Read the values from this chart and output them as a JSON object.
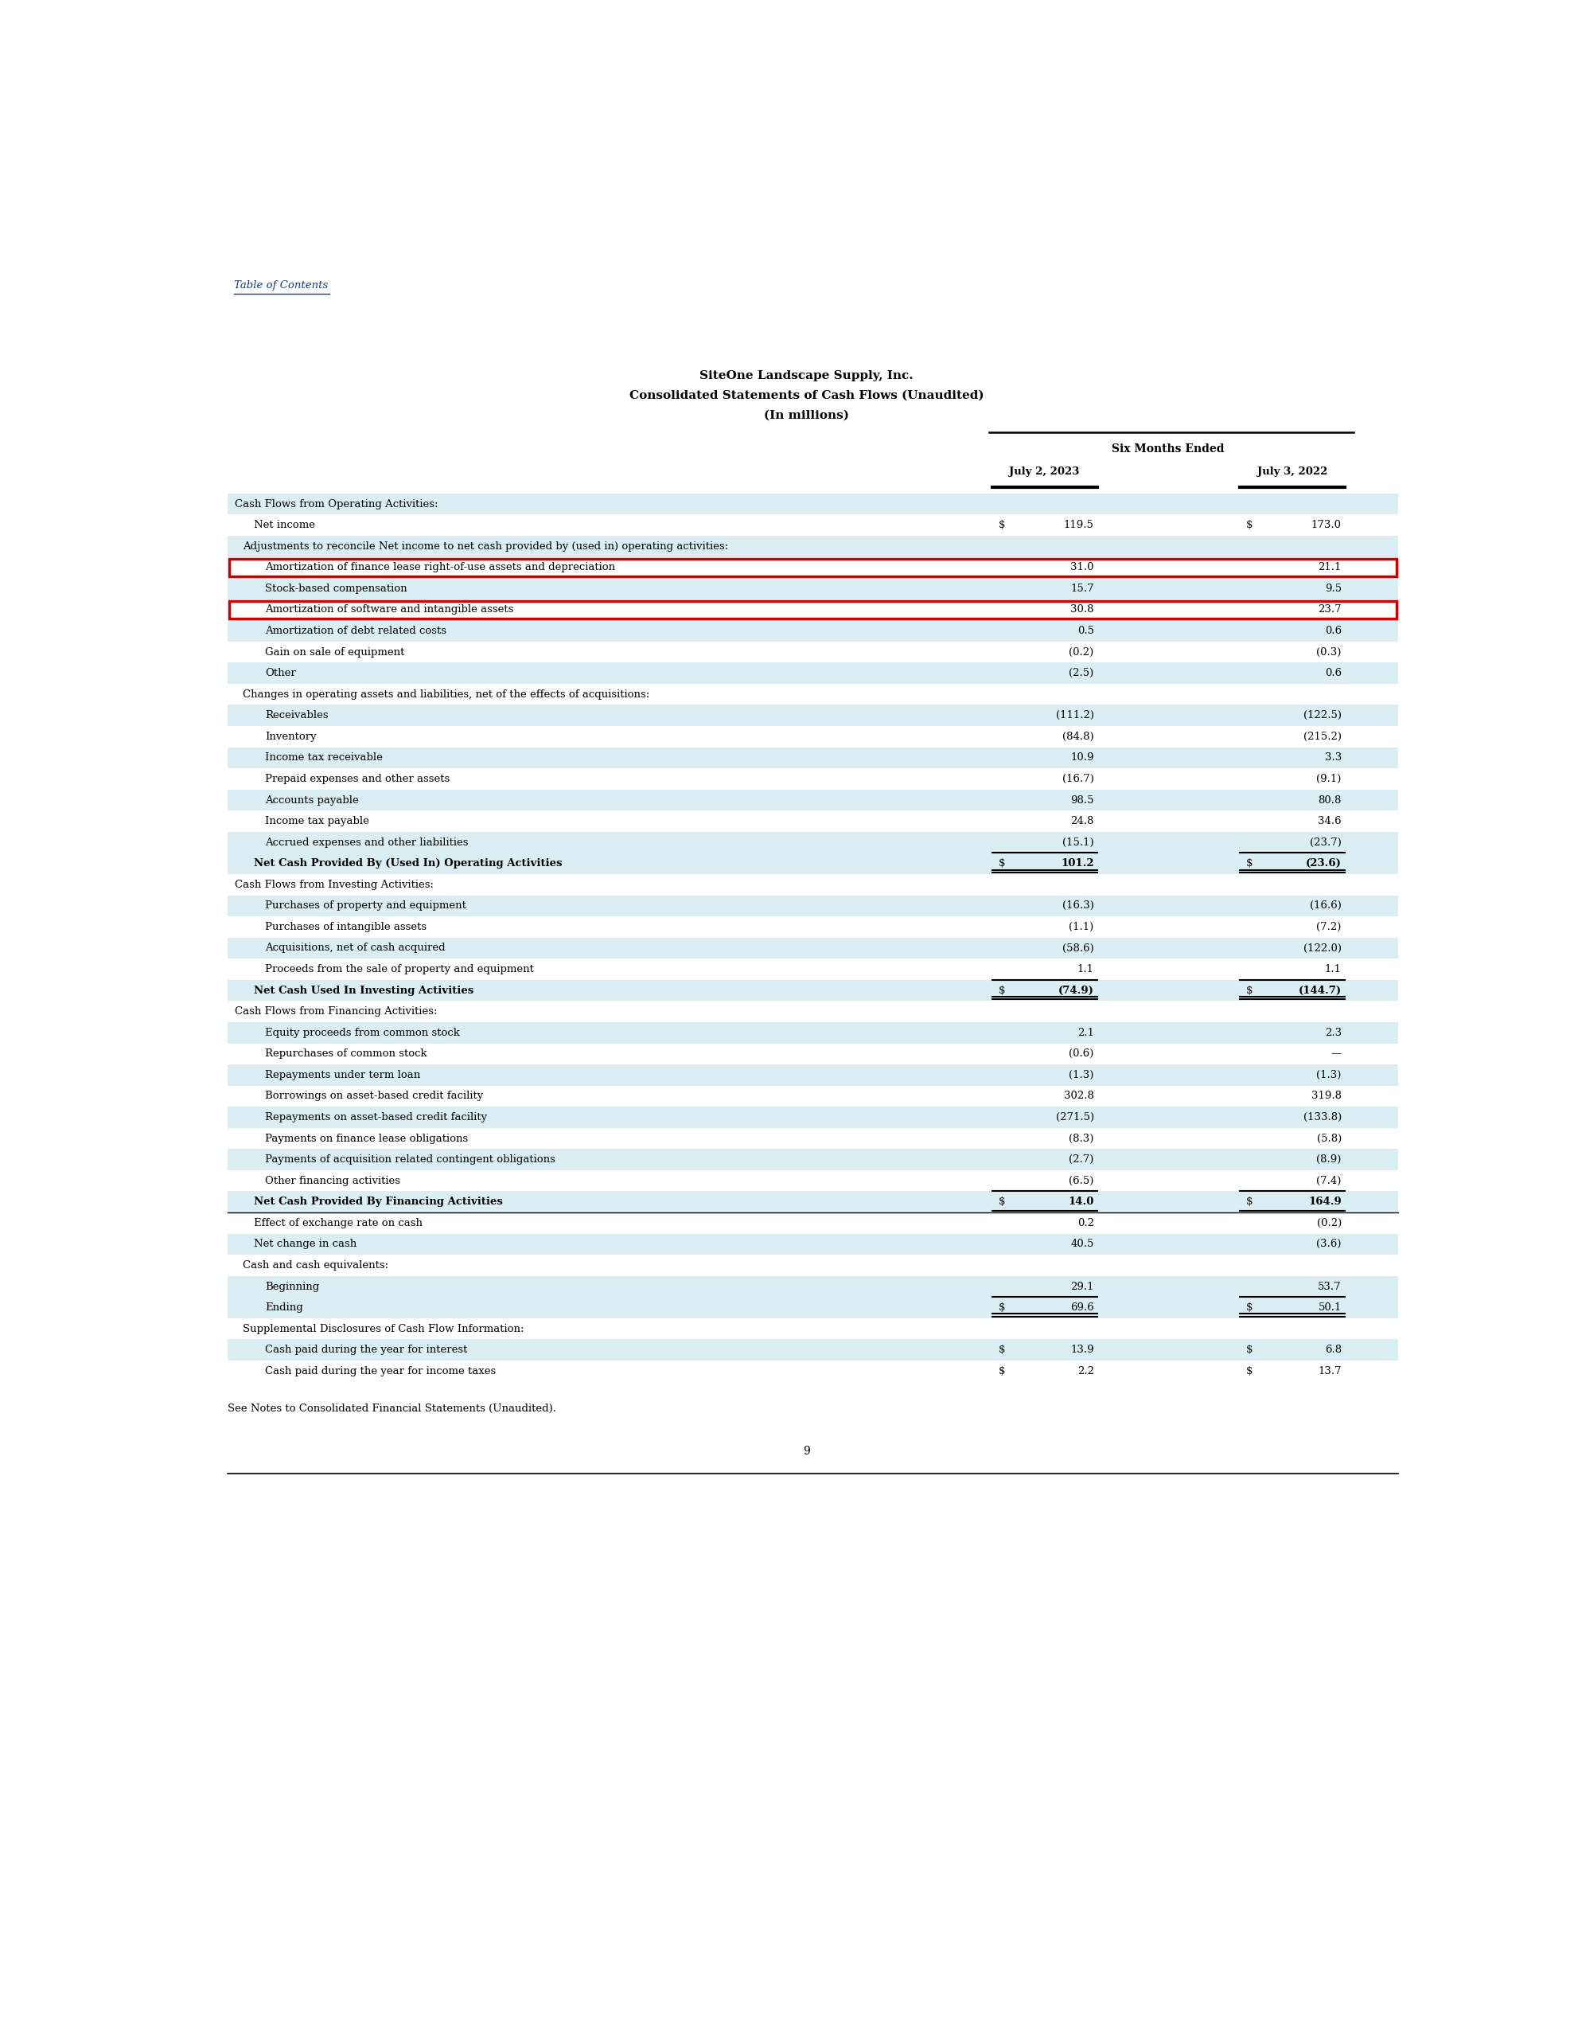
{
  "title_line1": "SiteOne Landscape Supply, Inc.",
  "title_line2": "Consolidated Statements of Cash Flows (Unaudited)",
  "title_line3": "(In millions)",
  "header_group": "Six Months Ended",
  "col1_header": "July 2, 2023",
  "col2_header": "July 3, 2022",
  "toc_text": "Table of Contents",
  "page_number": "9",
  "footer_text": "See Notes to Consolidated Financial Statements (Unaudited).",
  "bg_color": "#ffffff",
  "row_bg_blue": "#daeef3",
  "row_bg_white": "#ffffff",
  "highlight_border": "#cc0000",
  "rows": [
    {
      "label": "Cash Flows from Operating Activities:",
      "v1": "",
      "v2": "",
      "style": "section_header",
      "indent": 0,
      "bold": false
    },
    {
      "label": "Net income",
      "v1": "119.5",
      "v2": "173.0",
      "style": "normal_white",
      "indent": 1,
      "bold": false,
      "dollar1": true,
      "dollar2": true
    },
    {
      "label": "Adjustments to reconcile Net income to net cash provided by (used in) operating activities:",
      "v1": "",
      "v2": "",
      "style": "section_sub",
      "indent": 1,
      "bold": false
    },
    {
      "label": "Amortization of finance lease right-of-use assets and depreciation",
      "v1": "31.0",
      "v2": "21.1",
      "style": "normal_white",
      "indent": 2,
      "bold": false,
      "highlight": true
    },
    {
      "label": "Stock-based compensation",
      "v1": "15.7",
      "v2": "9.5",
      "style": "normal_blue",
      "indent": 2,
      "bold": false
    },
    {
      "label": "Amortization of software and intangible assets",
      "v1": "30.8",
      "v2": "23.7",
      "style": "normal_white",
      "indent": 2,
      "bold": false,
      "highlight": true
    },
    {
      "label": "Amortization of debt related costs",
      "v1": "0.5",
      "v2": "0.6",
      "style": "normal_blue",
      "indent": 2,
      "bold": false
    },
    {
      "label": "Gain on sale of equipment",
      "v1": "(0.2)",
      "v2": "(0.3)",
      "style": "normal_white",
      "indent": 2,
      "bold": false
    },
    {
      "label": "Other",
      "v1": "(2.5)",
      "v2": "0.6",
      "style": "normal_blue",
      "indent": 2,
      "bold": false
    },
    {
      "label": "Changes in operating assets and liabilities, net of the effects of acquisitions:",
      "v1": "",
      "v2": "",
      "style": "section_sub_white",
      "indent": 1,
      "bold": false
    },
    {
      "label": "Receivables",
      "v1": "(111.2)",
      "v2": "(122.5)",
      "style": "normal_blue",
      "indent": 2,
      "bold": false
    },
    {
      "label": "Inventory",
      "v1": "(84.8)",
      "v2": "(215.2)",
      "style": "normal_white",
      "indent": 2,
      "bold": false
    },
    {
      "label": "Income tax receivable",
      "v1": "10.9",
      "v2": "3.3",
      "style": "normal_blue",
      "indent": 2,
      "bold": false
    },
    {
      "label": "Prepaid expenses and other assets",
      "v1": "(16.7)",
      "v2": "(9.1)",
      "style": "normal_white",
      "indent": 2,
      "bold": false
    },
    {
      "label": "Accounts payable",
      "v1": "98.5",
      "v2": "80.8",
      "style": "normal_blue",
      "indent": 2,
      "bold": false
    },
    {
      "label": "Income tax payable",
      "v1": "24.8",
      "v2": "34.6",
      "style": "normal_white",
      "indent": 2,
      "bold": false
    },
    {
      "label": "Accrued expenses and other liabilities",
      "v1": "(15.1)",
      "v2": "(23.7)",
      "style": "normal_blue",
      "indent": 2,
      "bold": false
    },
    {
      "label": "Net Cash Provided By (Used In) Operating Activities",
      "v1": "101.2",
      "v2": "(23.6)",
      "style": "total_blue",
      "indent": 1,
      "bold": true,
      "dollar1": true,
      "dollar2": true,
      "top_line": true,
      "double_line": true
    },
    {
      "label": "Cash Flows from Investing Activities:",
      "v1": "",
      "v2": "",
      "style": "section_header_white",
      "indent": 0,
      "bold": false
    },
    {
      "label": "Purchases of property and equipment",
      "v1": "(16.3)",
      "v2": "(16.6)",
      "style": "normal_blue",
      "indent": 2,
      "bold": false
    },
    {
      "label": "Purchases of intangible assets",
      "v1": "(1.1)",
      "v2": "(7.2)",
      "style": "normal_white",
      "indent": 2,
      "bold": false
    },
    {
      "label": "Acquisitions, net of cash acquired",
      "v1": "(58.6)",
      "v2": "(122.0)",
      "style": "normal_blue",
      "indent": 2,
      "bold": false
    },
    {
      "label": "Proceeds from the sale of property and equipment",
      "v1": "1.1",
      "v2": "1.1",
      "style": "normal_white",
      "indent": 2,
      "bold": false
    },
    {
      "label": "Net Cash Used In Investing Activities",
      "v1": "(74.9)",
      "v2": "(144.7)",
      "style": "total_blue",
      "indent": 1,
      "bold": true,
      "dollar1": true,
      "dollar2": true,
      "top_line": true,
      "double_line": true
    },
    {
      "label": "Cash Flows from Financing Activities:",
      "v1": "",
      "v2": "",
      "style": "section_header_white",
      "indent": 0,
      "bold": false
    },
    {
      "label": "Equity proceeds from common stock",
      "v1": "2.1",
      "v2": "2.3",
      "style": "normal_blue",
      "indent": 2,
      "bold": false
    },
    {
      "label": "Repurchases of common stock",
      "v1": "(0.6)",
      "v2": "—",
      "style": "normal_white",
      "indent": 2,
      "bold": false
    },
    {
      "label": "Repayments under term loan",
      "v1": "(1.3)",
      "v2": "(1.3)",
      "style": "normal_blue",
      "indent": 2,
      "bold": false
    },
    {
      "label": "Borrowings on asset-based credit facility",
      "v1": "302.8",
      "v2": "319.8",
      "style": "normal_white",
      "indent": 2,
      "bold": false
    },
    {
      "label": "Repayments on asset-based credit facility",
      "v1": "(271.5)",
      "v2": "(133.8)",
      "style": "normal_blue",
      "indent": 2,
      "bold": false
    },
    {
      "label": "Payments on finance lease obligations",
      "v1": "(8.3)",
      "v2": "(5.8)",
      "style": "normal_white",
      "indent": 2,
      "bold": false
    },
    {
      "label": "Payments of acquisition related contingent obligations",
      "v1": "(2.7)",
      "v2": "(8.9)",
      "style": "normal_blue",
      "indent": 2,
      "bold": false
    },
    {
      "label": "Other financing activities",
      "v1": "(6.5)",
      "v2": "(7.4)",
      "style": "normal_white",
      "indent": 2,
      "bold": false
    },
    {
      "label": "Net Cash Provided By Financing Activities",
      "v1": "14.0",
      "v2": "164.9",
      "style": "total_blue",
      "indent": 1,
      "bold": true,
      "dollar1": true,
      "dollar2": true,
      "top_line": true,
      "double_line": false
    },
    {
      "label": "Effect of exchange rate on cash",
      "v1": "0.2",
      "v2": "(0.2)",
      "style": "normal_white",
      "indent": 1,
      "bold": false,
      "separator_above": true
    },
    {
      "label": "Net change in cash",
      "v1": "40.5",
      "v2": "(3.6)",
      "style": "normal_blue",
      "indent": 1,
      "bold": false
    },
    {
      "label": "Cash and cash equivalents:",
      "v1": "",
      "v2": "",
      "style": "section_sub_white",
      "indent": 0,
      "bold": false
    },
    {
      "label": "Beginning",
      "v1": "29.1",
      "v2": "53.7",
      "style": "normal_blue",
      "indent": 2,
      "bold": false
    },
    {
      "label": "Ending",
      "v1": "69.6",
      "v2": "50.1",
      "style": "total_blue",
      "indent": 2,
      "bold": false,
      "dollar1": true,
      "dollar2": true,
      "top_line": true,
      "double_line": true
    },
    {
      "label": "Supplemental Disclosures of Cash Flow Information:",
      "v1": "",
      "v2": "",
      "style": "section_sub_white",
      "indent": 0,
      "bold": false
    },
    {
      "label": "Cash paid during the year for interest",
      "v1": "13.9",
      "v2": "6.8",
      "style": "normal_blue",
      "indent": 2,
      "bold": false,
      "dollar1": true,
      "dollar2": true
    },
    {
      "label": "Cash paid during the year for income taxes",
      "v1": "2.2",
      "v2": "13.7",
      "style": "normal_white",
      "indent": 2,
      "bold": false,
      "dollar1": true,
      "dollar2": true
    }
  ]
}
